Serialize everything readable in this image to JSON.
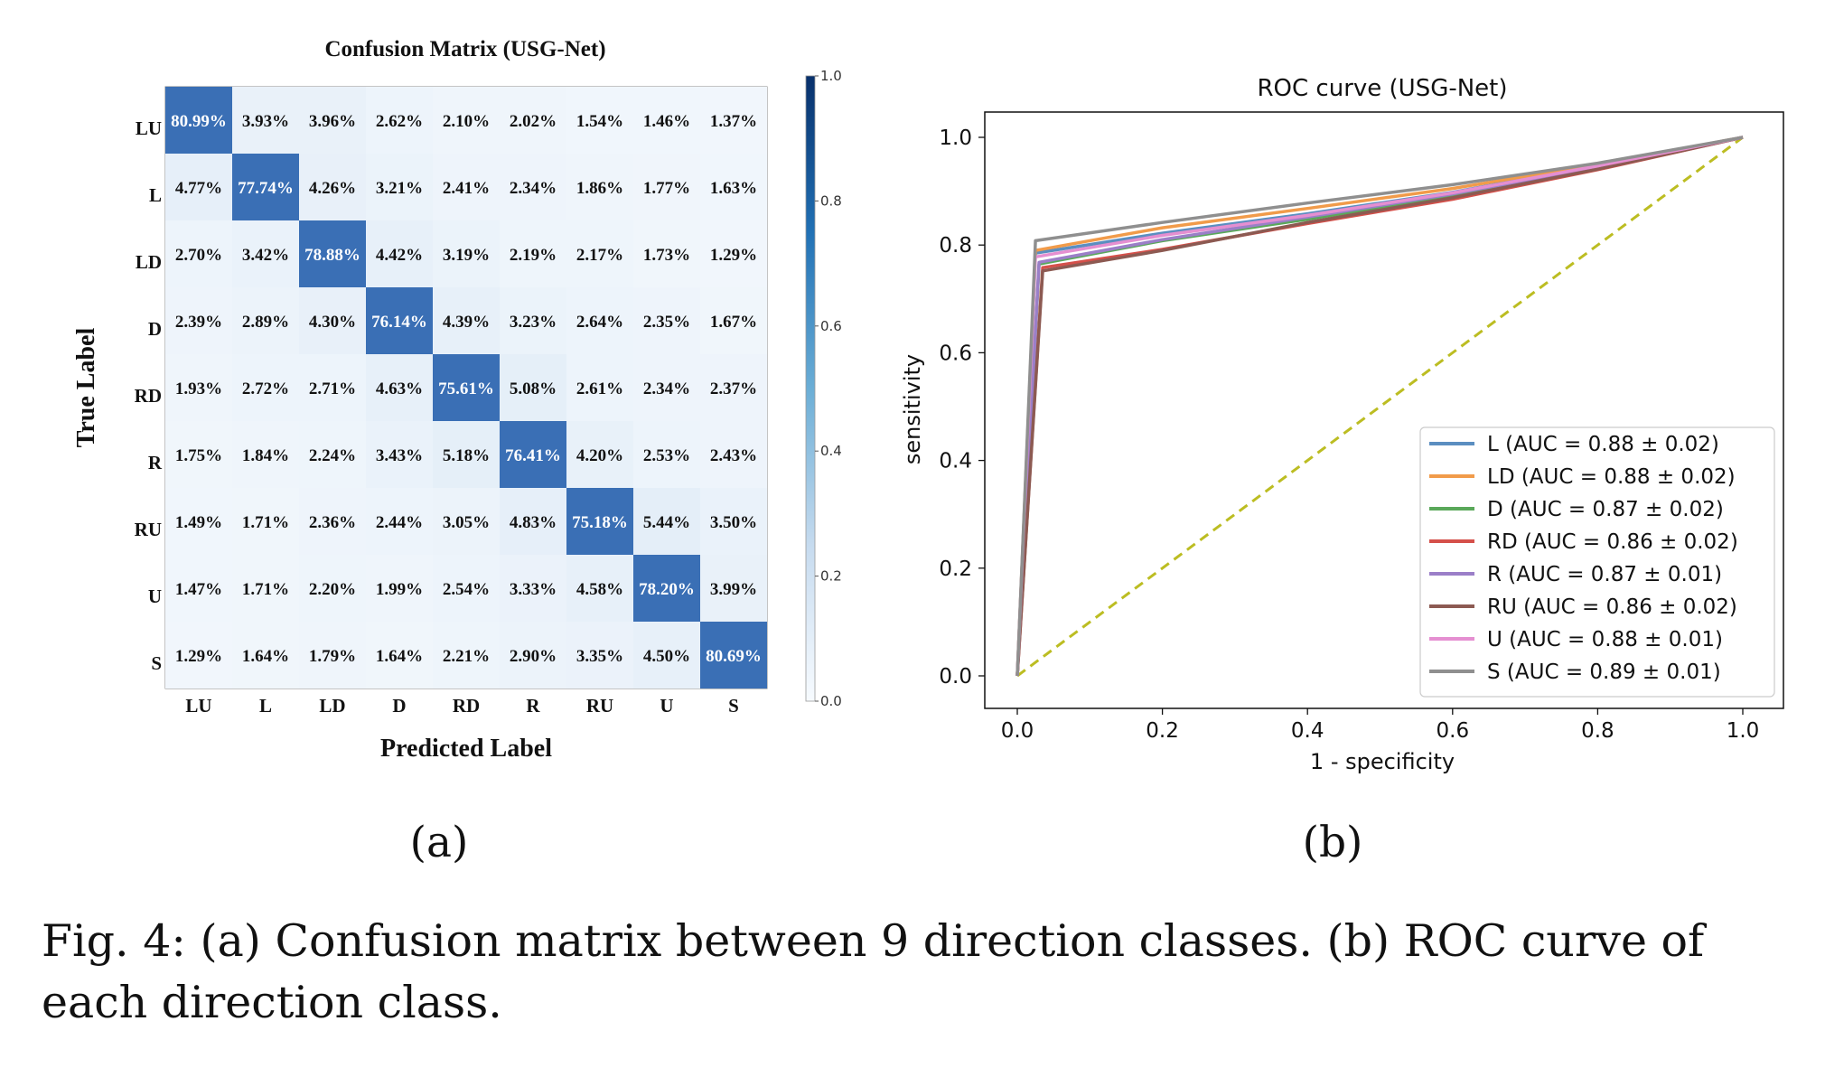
{
  "caption": "Fig. 4: (a) Confusion matrix between 9 direction classes. (b) ROC curve of each direction class.",
  "chart_data": [
    {
      "type": "heatmap",
      "panel_label": "(a)",
      "title": "Confusion Matrix (USG-Net)",
      "xlabel": "Predicted Label",
      "ylabel": "True Label",
      "categories": [
        "LU",
        "L",
        "LD",
        "D",
        "RD",
        "R",
        "RU",
        "U",
        "S"
      ],
      "values": [
        [
          80.99,
          3.93,
          3.96,
          2.62,
          2.1,
          2.02,
          1.54,
          1.46,
          1.37
        ],
        [
          4.77,
          77.74,
          4.26,
          3.21,
          2.41,
          2.34,
          1.86,
          1.77,
          1.63
        ],
        [
          2.7,
          3.42,
          78.88,
          4.42,
          3.19,
          2.19,
          2.17,
          1.73,
          1.29
        ],
        [
          2.39,
          2.89,
          4.3,
          76.14,
          4.39,
          3.23,
          2.64,
          2.35,
          1.67
        ],
        [
          1.93,
          2.72,
          2.71,
          4.63,
          75.61,
          5.08,
          2.61,
          2.34,
          2.37
        ],
        [
          1.75,
          1.84,
          2.24,
          3.43,
          5.18,
          76.41,
          4.2,
          2.53,
          2.43
        ],
        [
          1.49,
          1.71,
          2.36,
          2.44,
          3.05,
          4.83,
          75.18,
          5.44,
          3.5
        ],
        [
          1.47,
          1.71,
          2.2,
          1.99,
          2.54,
          3.33,
          4.58,
          78.2,
          3.99
        ],
        [
          1.29,
          1.64,
          1.79,
          1.64,
          2.21,
          2.9,
          3.35,
          4.5,
          80.69
        ]
      ],
      "value_suffix": "%",
      "colorbar": {
        "ticks": [
          "0.0",
          "0.2",
          "0.4",
          "0.6",
          "0.8",
          "1.0"
        ],
        "range": [
          0,
          1
        ]
      },
      "colors": {
        "low": "#f5f9fd",
        "mid": "#6fa2d4",
        "high": "#3a6fb5",
        "top": "#1a3a7c"
      }
    },
    {
      "type": "line",
      "panel_label": "(b)",
      "title": "ROC curve (USG-Net)",
      "xlabel": "1 - specificity",
      "ylabel": "sensitivity",
      "xlim": [
        0,
        1
      ],
      "ylim": [
        0,
        1
      ],
      "xticks": [
        "0.0",
        "0.2",
        "0.4",
        "0.6",
        "0.8",
        "1.0"
      ],
      "yticks": [
        "0.0",
        "0.2",
        "0.4",
        "0.6",
        "0.8",
        "1.0"
      ],
      "legend_position": "lower-right",
      "diagonal_color": "#bcbd22",
      "series": [
        {
          "name": "L (AUC = 0.88 ± 0.02)",
          "color": "#5b8ec0",
          "x": [
            0,
            0.025,
            0.2,
            0.4,
            0.6,
            0.8,
            1
          ],
          "y": [
            0,
            0.785,
            0.822,
            0.858,
            0.898,
            0.948,
            1
          ]
        },
        {
          "name": "LD (AUC = 0.88 ± 0.02)",
          "color": "#f19b4a",
          "x": [
            0,
            0.025,
            0.2,
            0.4,
            0.6,
            0.8,
            1
          ],
          "y": [
            0,
            0.79,
            0.832,
            0.868,
            0.905,
            0.95,
            1
          ]
        },
        {
          "name": "D (AUC = 0.87 ± 0.02)",
          "color": "#5aa85a",
          "x": [
            0,
            0.03,
            0.2,
            0.4,
            0.6,
            0.8,
            1
          ],
          "y": [
            0,
            0.765,
            0.808,
            0.848,
            0.892,
            0.944,
            1
          ]
        },
        {
          "name": "RD (AUC = 0.86 ± 0.02)",
          "color": "#d5504a",
          "x": [
            0,
            0.035,
            0.2,
            0.4,
            0.6,
            0.8,
            1
          ],
          "y": [
            0,
            0.758,
            0.792,
            0.84,
            0.885,
            0.94,
            1
          ]
        },
        {
          "name": "R (AUC = 0.87 ± 0.01)",
          "color": "#9b7fc8",
          "x": [
            0,
            0.03,
            0.2,
            0.4,
            0.6,
            0.8,
            1
          ],
          "y": [
            0,
            0.768,
            0.81,
            0.852,
            0.895,
            0.945,
            1
          ]
        },
        {
          "name": "RU (AUC = 0.86 ± 0.02)",
          "color": "#8c5a52",
          "x": [
            0,
            0.035,
            0.2,
            0.4,
            0.6,
            0.8,
            1
          ],
          "y": [
            0,
            0.752,
            0.79,
            0.842,
            0.888,
            0.941,
            1
          ]
        },
        {
          "name": "U (AUC = 0.88 ± 0.01)",
          "color": "#e58fd1",
          "x": [
            0,
            0.025,
            0.2,
            0.4,
            0.6,
            0.8,
            1
          ],
          "y": [
            0,
            0.778,
            0.818,
            0.855,
            0.897,
            0.947,
            1
          ]
        },
        {
          "name": "S (AUC = 0.89 ± 0.01)",
          "color": "#8f8f8f",
          "x": [
            0,
            0.025,
            0.2,
            0.4,
            0.6,
            0.8,
            1
          ],
          "y": [
            0,
            0.808,
            0.842,
            0.878,
            0.912,
            0.952,
            1
          ]
        }
      ]
    }
  ]
}
